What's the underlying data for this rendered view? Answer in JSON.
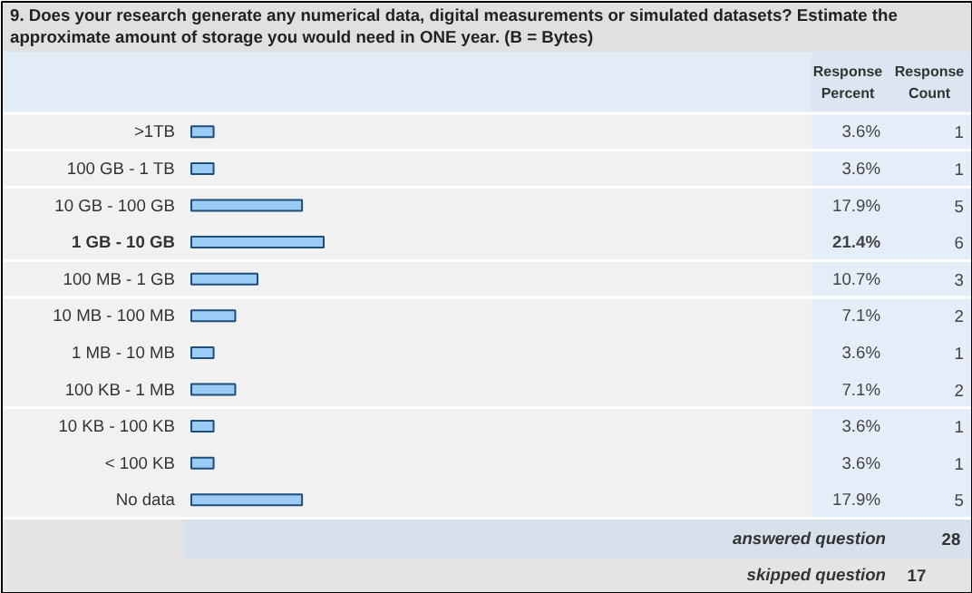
{
  "chart_data": {
    "type": "bar",
    "orientation": "horizontal",
    "title": "9. Does your research generate any numerical data, digital measurements or simulated datasets? Estimate the approximate amount of storage you would need in ONE year. (B = Bytes)",
    "categories": [
      ">1TB",
      "100 GB - 1 TB",
      "10 GB - 100 GB",
      "1 GB - 10 GB",
      "100 MB - 1 GB",
      "10 MB - 100 MB",
      "1 MB - 10 MB",
      "100 KB - 1 MB",
      "10 KB - 100 KB",
      "< 100 KB",
      "No data"
    ],
    "values": [
      3.6,
      3.6,
      17.9,
      21.4,
      10.7,
      7.1,
      3.6,
      7.1,
      3.6,
      3.6,
      17.9
    ],
    "value_labels": [
      "3.6%",
      "3.6%",
      "17.9%",
      "21.4%",
      "10.7%",
      "7.1%",
      "3.6%",
      "7.1%",
      "3.6%",
      "3.6%",
      "17.9%"
    ],
    "color": "#9ccbf5",
    "annotations": [
      "Response Percent",
      "Response Count",
      "answered question",
      "28",
      "skipped question",
      "17",
      "1",
      "1",
      "5",
      "6",
      "3",
      "2",
      "1",
      "2",
      "1",
      "1",
      "5"
    ]
  }
}
